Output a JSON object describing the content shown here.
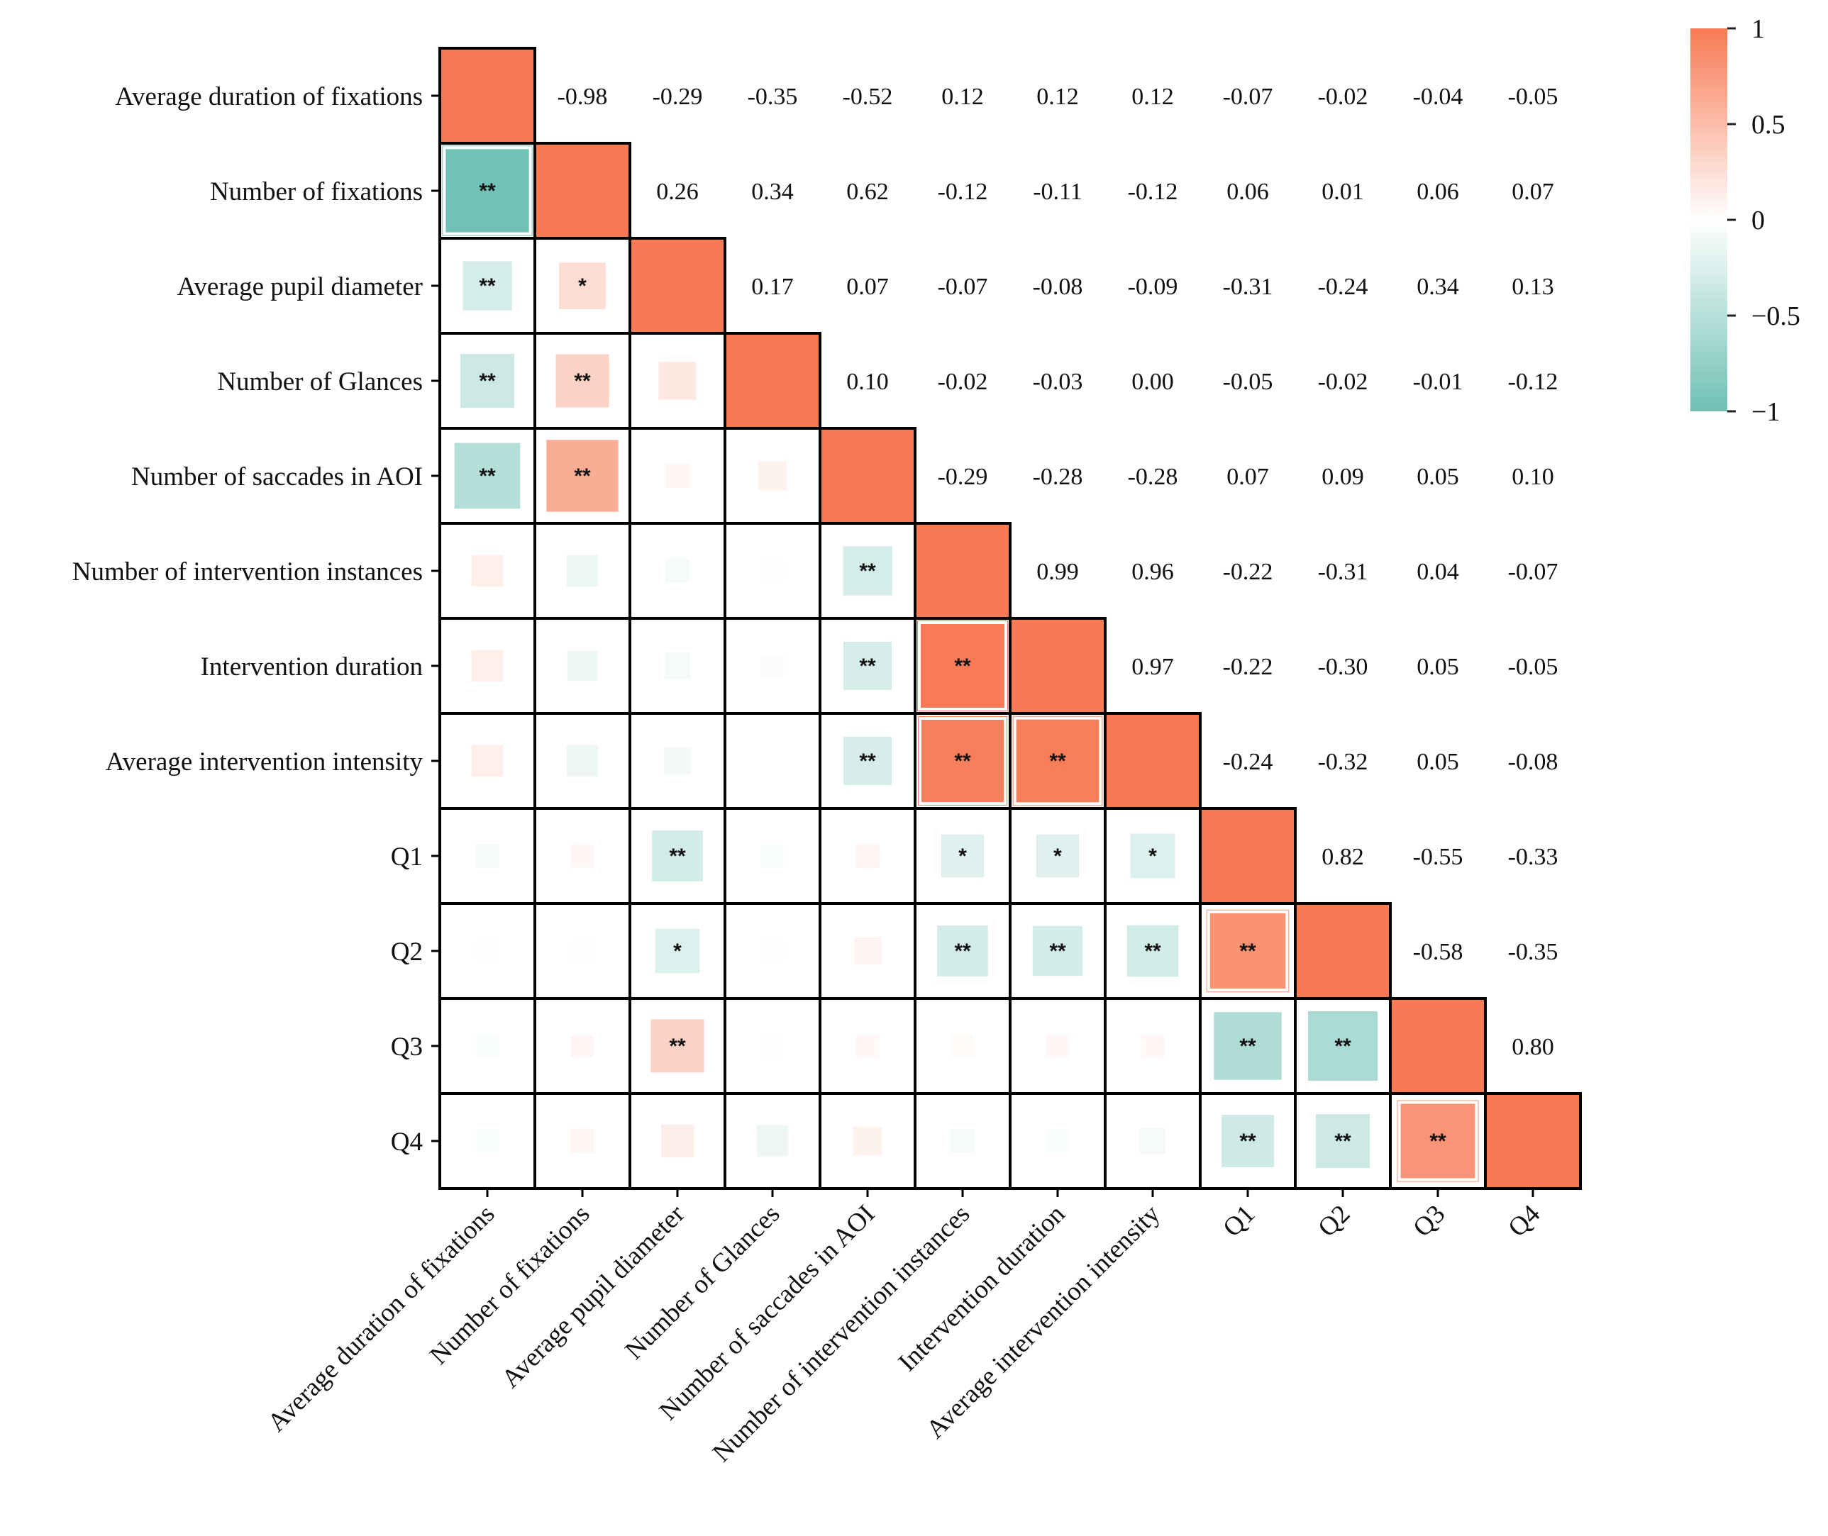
{
  "chart_data": {
    "type": "heatmap",
    "title": "",
    "variables": [
      "Average duration of fixations",
      "Number of fixations",
      "Average pupil diameter",
      "Number of Glances",
      "Number of saccades in AOI",
      "Number of intervention instances",
      "Intervention duration",
      "Average intervention intensity",
      "Q1",
      "Q2",
      "Q3",
      "Q4"
    ],
    "correlations": [
      [
        1,
        -0.98,
        -0.29,
        -0.35,
        -0.52,
        0.12,
        0.12,
        0.12,
        -0.07,
        -0.02,
        -0.04,
        -0.05
      ],
      [
        -0.98,
        1,
        0.26,
        0.34,
        0.62,
        -0.12,
        -0.11,
        -0.12,
        0.06,
        0.01,
        0.06,
        0.07
      ],
      [
        -0.29,
        0.26,
        1,
        0.17,
        0.07,
        -0.07,
        -0.08,
        -0.09,
        -0.31,
        -0.24,
        0.34,
        0.13
      ],
      [
        -0.35,
        0.34,
        0.17,
        1,
        0.1,
        -0.02,
        -0.03,
        0.0,
        -0.05,
        -0.02,
        -0.01,
        -0.12
      ],
      [
        -0.52,
        0.62,
        0.07,
        0.1,
        1,
        -0.29,
        -0.28,
        -0.28,
        0.07,
        0.09,
        0.05,
        0.1
      ],
      [
        0.12,
        -0.12,
        -0.07,
        -0.02,
        -0.29,
        1,
        0.99,
        0.96,
        -0.22,
        -0.31,
        0.04,
        -0.07
      ],
      [
        0.12,
        -0.11,
        -0.08,
        -0.03,
        -0.28,
        0.99,
        1,
        0.97,
        -0.22,
        -0.3,
        0.05,
        -0.05
      ],
      [
        0.12,
        -0.12,
        -0.09,
        0.0,
        -0.28,
        0.96,
        0.97,
        1,
        -0.24,
        -0.32,
        0.05,
        -0.08
      ],
      [
        -0.07,
        0.06,
        -0.31,
        -0.05,
        0.07,
        -0.22,
        -0.22,
        -0.24,
        1,
        0.82,
        -0.55,
        -0.33
      ],
      [
        -0.02,
        0.01,
        -0.24,
        -0.02,
        0.09,
        -0.31,
        -0.3,
        -0.32,
        0.82,
        1,
        -0.58,
        -0.35
      ],
      [
        -0.04,
        0.06,
        0.34,
        -0.01,
        0.05,
        0.04,
        0.05,
        0.05,
        -0.55,
        -0.58,
        1,
        0.8
      ],
      [
        -0.05,
        0.07,
        0.13,
        -0.12,
        0.1,
        -0.07,
        -0.05,
        -0.08,
        -0.33,
        -0.35,
        0.8,
        1
      ]
    ],
    "value_labels": [
      [
        "",
        "-0.98",
        "-0.29",
        "-0.35",
        "-0.52",
        "0.12",
        "0.12",
        "0.12",
        "-0.07",
        "-0.02",
        "-0.04",
        "-0.05"
      ],
      [
        "",
        "",
        "0.26",
        "0.34",
        "0.62",
        "-0.12",
        "-0.11",
        "-0.12",
        "0.06",
        "0.01",
        "0.06",
        "0.07"
      ],
      [
        "",
        "",
        "",
        "0.17",
        "0.07",
        "-0.07",
        "-0.08",
        "-0.09",
        "-0.31",
        "-0.24",
        "0.34",
        "0.13"
      ],
      [
        "",
        "",
        "",
        "",
        "0.10",
        "-0.02",
        "-0.03",
        "0.00",
        "-0.05",
        "-0.02",
        "-0.01",
        "-0.12"
      ],
      [
        "",
        "",
        "",
        "",
        "",
        "-0.29",
        "-0.28",
        "-0.28",
        "0.07",
        "0.09",
        "0.05",
        "0.10"
      ],
      [
        "",
        "",
        "",
        "",
        "",
        "",
        "0.99",
        "0.96",
        "-0.22",
        "-0.31",
        "0.04",
        "-0.07"
      ],
      [
        "",
        "",
        "",
        "",
        "",
        "",
        "",
        "0.97",
        "-0.22",
        "-0.30",
        "0.05",
        "-0.05"
      ],
      [
        "",
        "",
        "",
        "",
        "",
        "",
        "",
        "",
        "-0.24",
        "-0.32",
        "0.05",
        "-0.08"
      ],
      [
        "",
        "",
        "",
        "",
        "",
        "",
        "",
        "",
        "",
        "0.82",
        "-0.55",
        "-0.33"
      ],
      [
        "",
        "",
        "",
        "",
        "",
        "",
        "",
        "",
        "",
        "",
        "-0.58",
        "-0.35"
      ],
      [
        "",
        "",
        "",
        "",
        "",
        "",
        "",
        "",
        "",
        "",
        "",
        "0.80"
      ],
      [
        "",
        "",
        "",
        "",
        "",
        "",
        "",
        "",
        "",
        "",
        "",
        ""
      ]
    ],
    "significance": [
      [
        "",
        "",
        "",
        "",
        "",
        "",
        "",
        "",
        "",
        "",
        "",
        ""
      ],
      [
        "**",
        "",
        "",
        "",
        "",
        "",
        "",
        "",
        "",
        "",
        "",
        ""
      ],
      [
        "**",
        "*",
        "",
        "",
        "",
        "",
        "",
        "",
        "",
        "",
        "",
        ""
      ],
      [
        "**",
        "**",
        "",
        "",
        "",
        "",
        "",
        "",
        "",
        "",
        "",
        ""
      ],
      [
        "**",
        "**",
        "",
        "",
        "",
        "",
        "",
        "",
        "",
        "",
        "",
        ""
      ],
      [
        "",
        "",
        "",
        "",
        "**",
        "",
        "",
        "",
        "",
        "",
        "",
        ""
      ],
      [
        "",
        "",
        "",
        "",
        "**",
        "**",
        "",
        "",
        "",
        "",
        "",
        ""
      ],
      [
        "",
        "",
        "",
        "",
        "**",
        "**",
        "**",
        "",
        "",
        "",
        "",
        ""
      ],
      [
        "",
        "",
        "**",
        "",
        "",
        "*",
        "*",
        "*",
        "",
        "",
        "",
        ""
      ],
      [
        "",
        "",
        "*",
        "",
        "",
        "**",
        "**",
        "**",
        "**",
        "",
        "",
        ""
      ],
      [
        "",
        "",
        "**",
        "",
        "",
        "",
        "",
        "",
        "**",
        "**",
        "",
        ""
      ],
      [
        "",
        "",
        "",
        "",
        "",
        "",
        "",
        "",
        "**",
        "**",
        "**",
        ""
      ]
    ],
    "colorbar": {
      "range": [
        -1,
        1
      ],
      "ticks": [
        1,
        0.5,
        0,
        -0.5,
        -1
      ],
      "tick_labels": [
        "1",
        "0.5",
        "0",
        "−0.5",
        "−1"
      ],
      "colors": {
        "negative": "#6fc0b4",
        "zero": "#ffffff",
        "positive": "#f77a54"
      }
    },
    "xlabel": "",
    "ylabel": ""
  }
}
